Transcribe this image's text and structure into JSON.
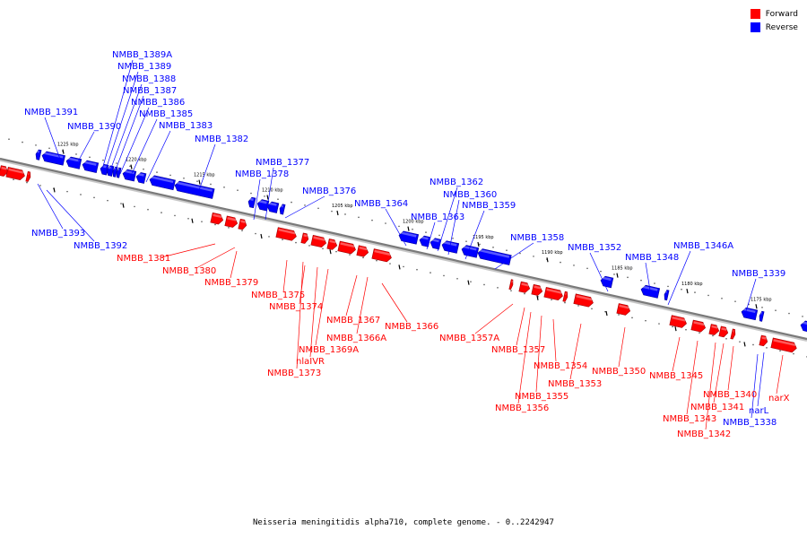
{
  "legend": {
    "forward_label": "Forward",
    "reverse_label": "Reverse",
    "forward_color": "#ff0000",
    "reverse_color": "#0000ff"
  },
  "caption": "Neisseria meningitidis alpha710, complete genome. - 0..2242947",
  "scale_ticks": [
    "1225 kbp",
    "1220 kbp",
    "1215 kbp",
    "1210 kbp",
    "1205 kbp",
    "1200 kbp",
    "1195 kbp",
    "1190 kbp",
    "1185 kbp",
    "1180 kbp",
    "1175 kbp"
  ],
  "reverse_genes": [
    "NMBB_1389A",
    "NMBB_1389",
    "NMBB_1388",
    "NMBB_1387",
    "NMBB_1386",
    "NMBB_1385",
    "NMBB_1383",
    "NMBB_1382",
    "NMBB_1391",
    "NMBB_1390",
    "NMBB_1377",
    "NMBB_1378",
    "NMBB_1376",
    "NMBB_1393",
    "NMBB_1392",
    "NMBB_1362",
    "NMBB_1360",
    "NMBB_1359",
    "NMBB_1364",
    "NMBB_1363",
    "NMBB_1358",
    "NMBB_1352",
    "NMBB_1348",
    "NMBB_1346A",
    "NMBB_1339",
    "NMBB_1338",
    "narL"
  ],
  "forward_genes": [
    "NMBB_1381",
    "NMBB_1380",
    "NMBB_1379",
    "NMBB_1375",
    "NMBB_1374",
    "NMBB_1367",
    "NMBB_1366A",
    "NMBB_1369A",
    "nlaIVR",
    "NMBB_1373",
    "NMBB_1366",
    "NMBB_1357A",
    "NMBB_1357",
    "NMBB_1354",
    "NMBB_1353",
    "NMBB_1355",
    "NMBB_1356",
    "NMBB_1350",
    "NMBB_1345",
    "NMBB_1340",
    "NMBB_1341",
    "NMBB_1343",
    "NMBB_1342",
    "narX"
  ]
}
